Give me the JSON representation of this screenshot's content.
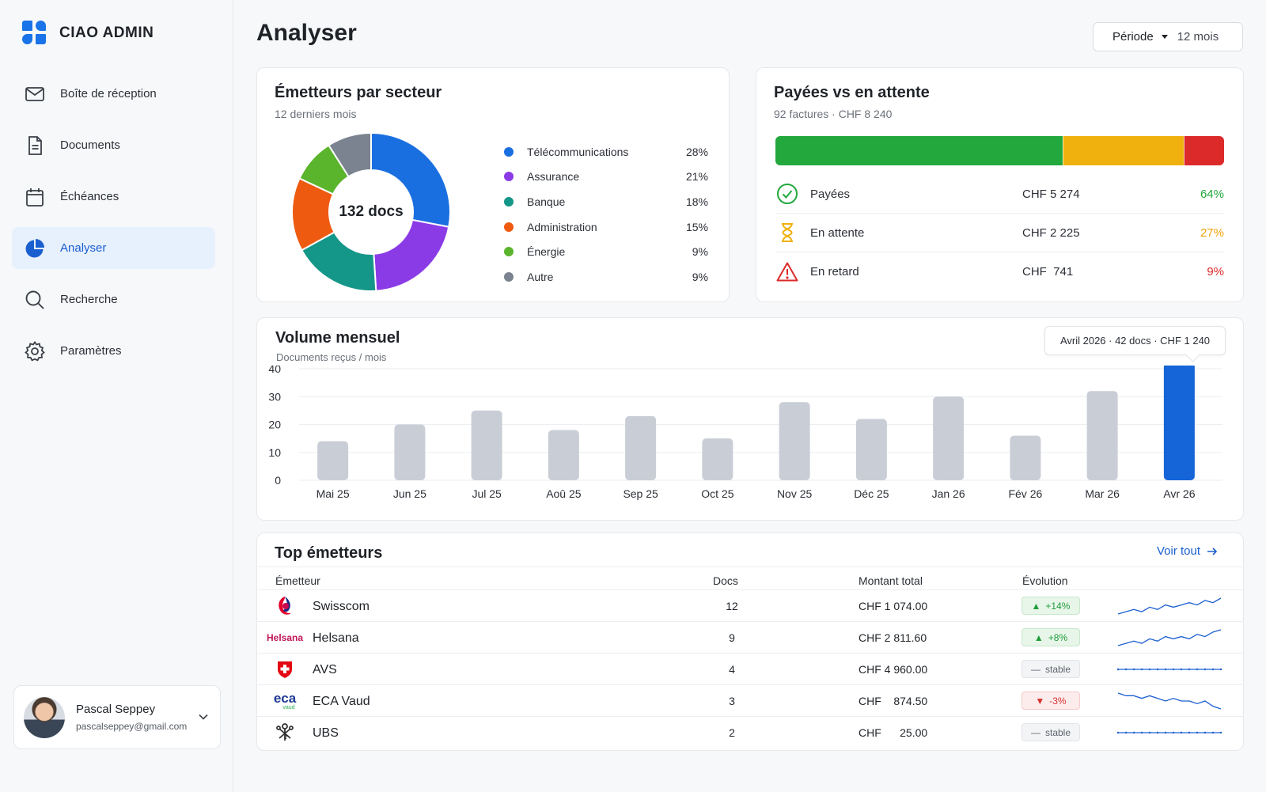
{
  "app": {
    "name": "CIAO ADMIN"
  },
  "sidebar": {
    "items": [
      {
        "label": "Boîte de réception",
        "icon": "mail-icon",
        "active": false
      },
      {
        "label": "Documents",
        "icon": "document-icon",
        "active": false
      },
      {
        "label": "Échéances",
        "icon": "calendar-icon",
        "active": false
      },
      {
        "label": "Analyser",
        "icon": "pie-chart-icon",
        "active": true
      },
      {
        "label": "Recherche",
        "icon": "search-icon",
        "active": false
      },
      {
        "label": "Paramètres",
        "icon": "gear-icon",
        "active": false
      }
    ]
  },
  "user": {
    "name": "Pascal Seppey",
    "email": "pascalseppey@gmail.com"
  },
  "header": {
    "title": "Analyser",
    "period_label": "Période",
    "period_value": "12 mois"
  },
  "sector_card": {
    "title": "Émetteurs par secteur",
    "subtitle": "12 derniers mois",
    "center_label": "132 docs",
    "sectors": [
      {
        "label": "Télécommunications",
        "pct": "28%",
        "value": 28,
        "color": "#1a6fe0"
      },
      {
        "label": "Assurance",
        "pct": "21%",
        "value": 21,
        "color": "#8a3be6"
      },
      {
        "label": "Banque",
        "pct": "18%",
        "value": 18,
        "color": "#149688"
      },
      {
        "label": "Administration",
        "pct": "15%",
        "value": 15,
        "color": "#ee5a10"
      },
      {
        "label": "Énergie",
        "pct": "9%",
        "value": 9,
        "color": "#5ab42c"
      },
      {
        "label": "Autre",
        "pct": "9%",
        "value": 9,
        "color": "#7a838f"
      }
    ]
  },
  "paid_card": {
    "title": "Payées vs en attente",
    "subtitle": "92 factures · CHF 8 240",
    "segments": [
      {
        "label": "Payées",
        "amount": "CHF 5 274",
        "pct": "64%",
        "value": 64,
        "color": "#22a83c",
        "icon": "check-circle-icon"
      },
      {
        "label": "En attente",
        "amount": "CHF 2 225",
        "pct": "27%",
        "value": 27,
        "color": "#f0b10e",
        "icon": "hourglass-icon"
      },
      {
        "label": "En retard",
        "amount": "CHF  741",
        "pct": "9%",
        "value": 9,
        "color": "#dc2a2a",
        "icon": "warning-icon"
      }
    ]
  },
  "volume_card": {
    "title": "Volume mensuel",
    "subtitle": "Documents reçus / mois",
    "tooltip": "Avril 2026 · 42 docs · CHF 1 240"
  },
  "chart_data": {
    "type": "bar",
    "categories": [
      "Mai 25",
      "Jun 25",
      "Jul 25",
      "Aoû 25",
      "Sep 25",
      "Oct 25",
      "Nov 25",
      "Déc 25",
      "Jan 26",
      "Fév 26",
      "Mar 26",
      "Avr 26"
    ],
    "values": [
      14,
      20,
      25,
      18,
      23,
      15,
      28,
      22,
      30,
      16,
      32,
      42
    ],
    "ylim": [
      0,
      40
    ],
    "yticks": [
      0,
      10,
      20,
      30,
      40
    ],
    "highlight_index": 11,
    "bar_color": "#c9ced6",
    "highlight_color": "#1565d8",
    "grid": true
  },
  "top_issuers": {
    "title": "Top émetteurs",
    "see_all": "Voir tout",
    "columns": {
      "issuer": "Émetteur",
      "docs": "Docs",
      "amount": "Montant total",
      "evolution": "Évolution"
    },
    "rows": [
      {
        "name": "Swisscom",
        "logo": "swisscom-logo-icon",
        "docs": "12",
        "amount": "CHF 1 074.00",
        "evo": "+14%",
        "trend": "up",
        "spark": [
          3,
          4,
          5,
          4,
          6,
          5,
          7,
          6,
          7,
          8,
          7,
          9,
          8,
          10
        ]
      },
      {
        "name": "Helsana",
        "logo_text": "Helsana",
        "logo": "helsana-logo-icon",
        "docs": "9",
        "amount": "CHF 2 811.60",
        "evo": "+8%",
        "trend": "up",
        "spark": [
          2,
          3,
          4,
          3,
          5,
          4,
          6,
          5,
          6,
          5,
          7,
          6,
          8,
          9
        ]
      },
      {
        "name": "AVS",
        "logo": "swiss-cross-logo-icon",
        "docs": "4",
        "amount": "CHF 4 960.00",
        "evo": "stable",
        "trend": "flat",
        "spark": [
          5,
          5,
          5,
          5,
          5,
          5,
          5,
          5,
          5,
          5,
          5,
          5,
          5,
          5
        ]
      },
      {
        "name": "ECA Vaud",
        "logo_text": "eca",
        "logo_sub": "vaud",
        "logo": "eca-logo-icon",
        "docs": "3",
        "amount": "CHF    874.50",
        "evo": "-3%",
        "trend": "down",
        "spark": [
          9,
          8,
          8,
          7,
          8,
          7,
          6,
          7,
          6,
          6,
          5,
          6,
          4,
          3
        ]
      },
      {
        "name": "UBS",
        "logo": "ubs-keys-logo-icon",
        "docs": "2",
        "amount": "CHF      25.00",
        "evo": "stable",
        "trend": "flat",
        "spark": [
          5,
          5,
          5,
          5,
          5,
          5,
          5,
          5,
          5,
          5,
          5,
          5,
          5,
          5
        ]
      }
    ]
  }
}
